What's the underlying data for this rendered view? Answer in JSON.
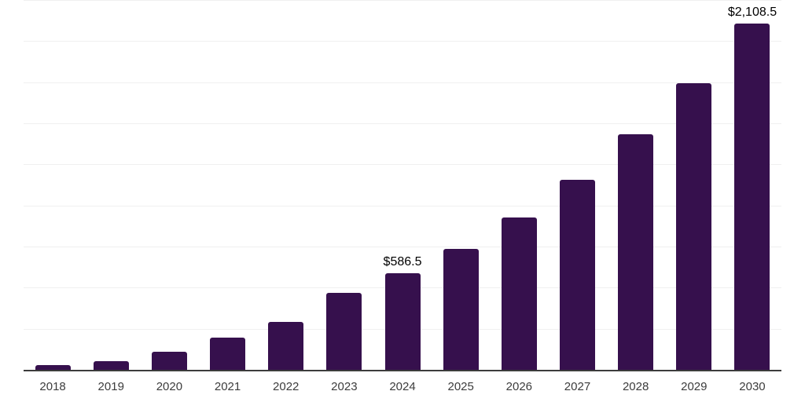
{
  "chart_data": {
    "type": "bar",
    "title": "",
    "xlabel": "",
    "ylabel": "",
    "categories": [
      "2018",
      "2019",
      "2020",
      "2021",
      "2022",
      "2023",
      "2024",
      "2025",
      "2026",
      "2027",
      "2028",
      "2029",
      "2030"
    ],
    "values": [
      30,
      55,
      108,
      198,
      293,
      470,
      586.5,
      736,
      925,
      1157,
      1435,
      1746,
      2108.5
    ],
    "annotations": [
      {
        "category": "2024",
        "text": "$586.5"
      },
      {
        "category": "2030",
        "text": "$2,108.5"
      }
    ],
    "ylim": [
      0,
      2250
    ],
    "gridline_interval": 250,
    "grid_horizontal": true,
    "legend_position": "none",
    "colors": {
      "bar": "#36104d",
      "gridline": "#f0f0f0",
      "axis_line": "#3c3c3c",
      "tick_label": "#3c3c3c",
      "annotation": "#000000",
      "background": "#ffffff"
    }
  }
}
